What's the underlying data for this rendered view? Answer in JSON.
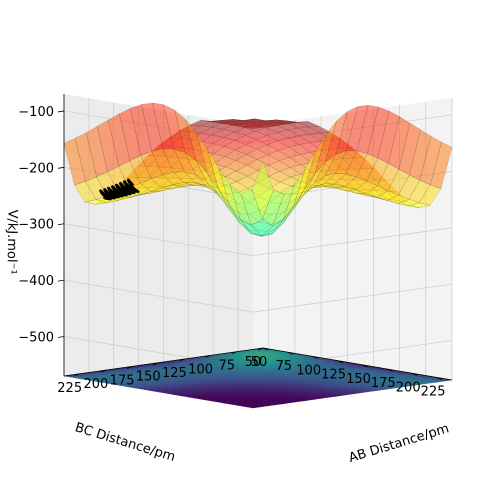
{
  "chart_data": {
    "type": "surface3d",
    "xlabel": "AB Distance/pm",
    "ylabel": "BC Distance/pm",
    "zlabel": "V/kJ.mol⁻¹",
    "x_ticks": [
      "50",
      "75",
      "100",
      "125",
      "150",
      "175",
      "200",
      "225"
    ],
    "y_ticks": [
      "50",
      "75",
      "100",
      "125",
      "150",
      "175",
      "200",
      "225"
    ],
    "z_ticks": [
      "−500",
      "−400",
      "−300",
      "−200",
      "−100"
    ],
    "xlim": [
      50,
      240
    ],
    "ylim": [
      50,
      240
    ],
    "zlim": [
      -570,
      -70
    ],
    "colormap_surface": "jet",
    "colormap_contour": "viridis",
    "surface_alpha": 0.5,
    "contour_offset": -570,
    "trajectory_color": "#000000",
    "pane_color": "#f2f2f2",
    "grid": true
  }
}
